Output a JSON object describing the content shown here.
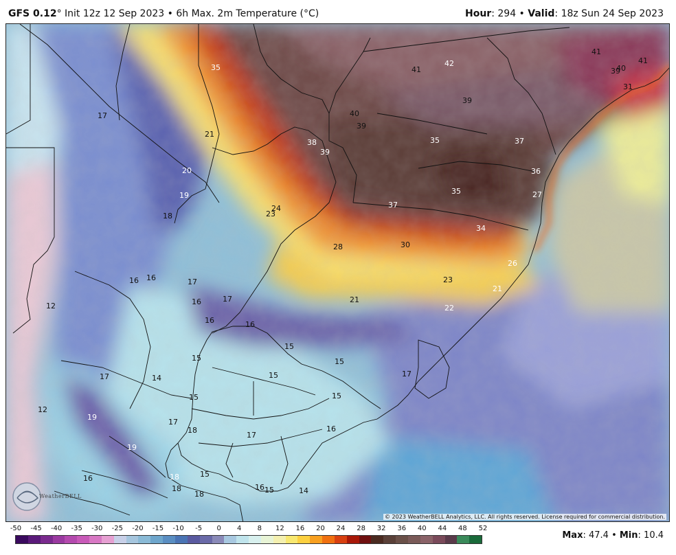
{
  "header": {
    "model": "GFS 0.12",
    "degree": "°",
    "init_text": " Init 12z 12 Sep 2023 • 6h Max. 2m Temperature (°C)",
    "hour_label": "Hour",
    "hour_value": ": 294 • ",
    "valid_label": "Valid",
    "valid_value": ": 18z Sun 24 Sep 2023"
  },
  "footer": {
    "copyright": "© 2023 WeatherBELL Analytics, LLC. All rights reserved. License required for commercial distribution.",
    "logo_text": "WeatherBELL",
    "max_label": "Max",
    "max_value": ": 47.4 • ",
    "min_label": "Min",
    "min_value": ": 10.4"
  },
  "colorbar": {
    "ticks": [
      "-50",
      "-45",
      "-40",
      "-35",
      "-30",
      "-25",
      "-20",
      "-15",
      "-10",
      "-5",
      "0",
      "4",
      "8",
      "12",
      "16",
      "20",
      "24",
      "28",
      "32",
      "36",
      "40",
      "44",
      "48",
      "52"
    ],
    "colors": [
      "#3a0a5e",
      "#5a1a7a",
      "#7a2a8e",
      "#9a3aa0",
      "#b44aae",
      "#c85ab8",
      "#d878c4",
      "#e6a0d2",
      "#c8d0e8",
      "#a6c6de",
      "#8abad6",
      "#6ea6cc",
      "#5a8ec2",
      "#4a74b4",
      "#5a5aa0",
      "#6a6aa8",
      "#8a8ab8",
      "#a8c8e0",
      "#c0e4ec",
      "#d8f0ee",
      "#e8f4d6",
      "#f4f0b0",
      "#f8e870",
      "#fcd040",
      "#f8a020",
      "#f07010",
      "#d84010",
      "#a81808",
      "#701010",
      "#4a2a20",
      "#5a4038",
      "#6a5048",
      "#7a5a58",
      "#8a6268",
      "#7a4a5a",
      "#5a3a4a",
      "#3a8a5a",
      "#1a6a3a"
    ]
  },
  "map": {
    "labels": [
      {
        "t": "35",
        "c": "w"
      },
      {
        "t": "41",
        "c": "k"
      },
      {
        "t": "42",
        "c": "w"
      },
      {
        "t": "41",
        "c": "k"
      },
      {
        "t": "39",
        "c": "k"
      },
      {
        "t": "40",
        "c": "k"
      },
      {
        "t": "41",
        "c": "k"
      },
      {
        "t": "39",
        "c": "k"
      },
      {
        "t": "40",
        "c": "k"
      },
      {
        "t": "39",
        "c": "k"
      },
      {
        "t": "31",
        "c": "k"
      },
      {
        "t": "17",
        "c": "k"
      },
      {
        "t": "21",
        "c": "k"
      },
      {
        "t": "38",
        "c": "w"
      },
      {
        "t": "35",
        "c": "w"
      },
      {
        "t": "37",
        "c": "w"
      },
      {
        "t": "39",
        "c": "w"
      },
      {
        "t": "20",
        "c": "w"
      },
      {
        "t": "36",
        "c": "w"
      },
      {
        "t": "19",
        "c": "w"
      },
      {
        "t": "35",
        "c": "w"
      },
      {
        "t": "27",
        "c": "w"
      },
      {
        "t": "24",
        "c": "k"
      },
      {
        "t": "23",
        "c": "k"
      },
      {
        "t": "37",
        "c": "w"
      },
      {
        "t": "18",
        "c": "k"
      },
      {
        "t": "34",
        "c": "w"
      },
      {
        "t": "28",
        "c": "k"
      },
      {
        "t": "30",
        "c": "k"
      },
      {
        "t": "26",
        "c": "w"
      },
      {
        "t": "16",
        "c": "k"
      },
      {
        "t": "16",
        "c": "k"
      },
      {
        "t": "17",
        "c": "k"
      },
      {
        "t": "23",
        "c": "k"
      },
      {
        "t": "21",
        "c": "w"
      },
      {
        "t": "12",
        "c": "k"
      },
      {
        "t": "16",
        "c": "k"
      },
      {
        "t": "17",
        "c": "k"
      },
      {
        "t": "21",
        "c": "k"
      },
      {
        "t": "22",
        "c": "w"
      },
      {
        "t": "16",
        "c": "k"
      },
      {
        "t": "16",
        "c": "k"
      },
      {
        "t": "15",
        "c": "k"
      },
      {
        "t": "15",
        "c": "k"
      },
      {
        "t": "15",
        "c": "k"
      },
      {
        "t": "17",
        "c": "k"
      },
      {
        "t": "14",
        "c": "k"
      },
      {
        "t": "15",
        "c": "k"
      },
      {
        "t": "17",
        "c": "k"
      },
      {
        "t": "15",
        "c": "k"
      },
      {
        "t": "15",
        "c": "k"
      },
      {
        "t": "12",
        "c": "k"
      },
      {
        "t": "19",
        "c": "w"
      },
      {
        "t": "17",
        "c": "k"
      },
      {
        "t": "18",
        "c": "k"
      },
      {
        "t": "17",
        "c": "k"
      },
      {
        "t": "16",
        "c": "k"
      },
      {
        "t": "19",
        "c": "w"
      },
      {
        "t": "16",
        "c": "k"
      },
      {
        "t": "18",
        "c": "w"
      },
      {
        "t": "15",
        "c": "k"
      },
      {
        "t": "18",
        "c": "k"
      },
      {
        "t": "18",
        "c": "k"
      },
      {
        "t": "16",
        "c": "k"
      },
      {
        "t": "15",
        "c": "k"
      },
      {
        "t": "14",
        "c": "k"
      }
    ]
  }
}
